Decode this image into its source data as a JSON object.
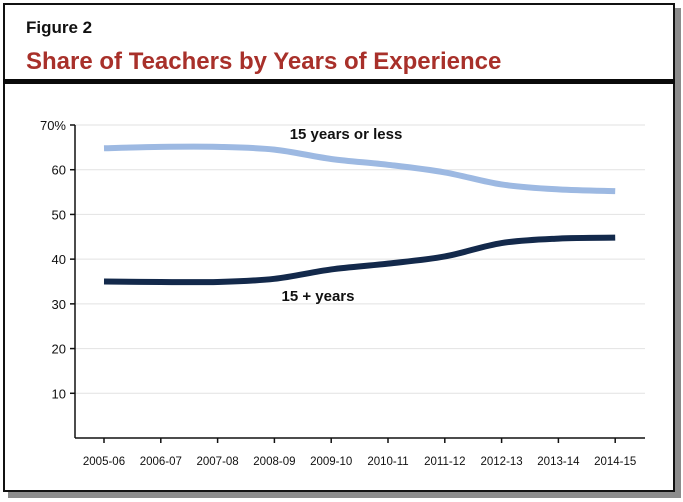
{
  "figure": {
    "label": "Figure 2",
    "title": "Share of Teachers by Years of Experience",
    "title_color": "#A8302A"
  },
  "chart_data": {
    "type": "line",
    "title": "Share of Teachers by Years of Experience",
    "xlabel": "",
    "ylabel": "",
    "ylim": [
      0,
      70
    ],
    "yticks": [
      10,
      20,
      30,
      40,
      50,
      60,
      70
    ],
    "ytick_labels": [
      "10",
      "20",
      "30",
      "40",
      "50",
      "60",
      "70%"
    ],
    "grid": true,
    "legend": "inline labels",
    "categories": [
      "2005-06",
      "2006-07",
      "2007-08",
      "2008-09",
      "2009-10",
      "2010-11",
      "2011-12",
      "2012-13",
      "2013-14",
      "2014-15"
    ],
    "series": [
      {
        "name": "15 years or less",
        "color": "#9DB9E2",
        "values": [
          64.8,
          65.1,
          65.1,
          64.5,
          62.4,
          61.1,
          59.4,
          56.7,
          55.6,
          55.2
        ]
      },
      {
        "name": "15 + years",
        "color": "#13294B",
        "values": [
          35.0,
          34.9,
          34.9,
          35.6,
          37.7,
          39.0,
          40.6,
          43.6,
          44.6,
          44.8
        ]
      }
    ],
    "annotations": [
      {
        "text": "15 years or less",
        "series": 0
      },
      {
        "text": "15 + years",
        "series": 1
      }
    ]
  }
}
